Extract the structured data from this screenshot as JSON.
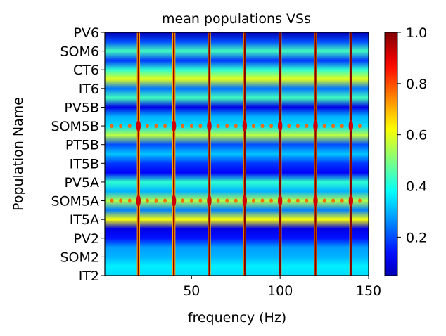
{
  "chart_data": {
    "type": "heatmap",
    "title": "mean populations VSs",
    "xlabel": "frequency (Hz)",
    "ylabel": "Population Name",
    "xlim": [
      1,
      150
    ],
    "xticks": [
      50,
      100,
      150
    ],
    "y_categories_top_to_bottom": [
      "PV6",
      "SOM6",
      "CT6",
      "IT6",
      "PV5B",
      "SOM5B",
      "PT5B",
      "IT5B",
      "PV5A",
      "SOM5A",
      "IT5A",
      "PV2",
      "SOM2",
      "IT2"
    ],
    "colormap": "jet",
    "colorbar": {
      "min": 0.05,
      "max": 1.0,
      "ticks": [
        0.2,
        0.4,
        0.6,
        0.8,
        1.0
      ],
      "tick_labels": [
        "0.2",
        "0.4",
        "0.6",
        "0.8",
        "1.0"
      ]
    },
    "band_levels_top_to_bottom": [
      0.05,
      0.2,
      0.44,
      0.18,
      0.42,
      0.6,
      0.24,
      0.44,
      0.1,
      0.3,
      0.34,
      0.56,
      0.2,
      0.32,
      0.18,
      0.12,
      0.42,
      0.3,
      0.55,
      0.25,
      0.62,
      0.1,
      0.14,
      0.28,
      0.3,
      0.36,
      0.34
    ],
    "peak_frequencies_hz": [
      20,
      40,
      60,
      80,
      100,
      120,
      140
    ],
    "peak_value": 1.0,
    "harmonic_dot_rows": [
      "SOM5B",
      "SOM5A"
    ],
    "harmonic_dot_value": 0.78,
    "grid": false
  }
}
